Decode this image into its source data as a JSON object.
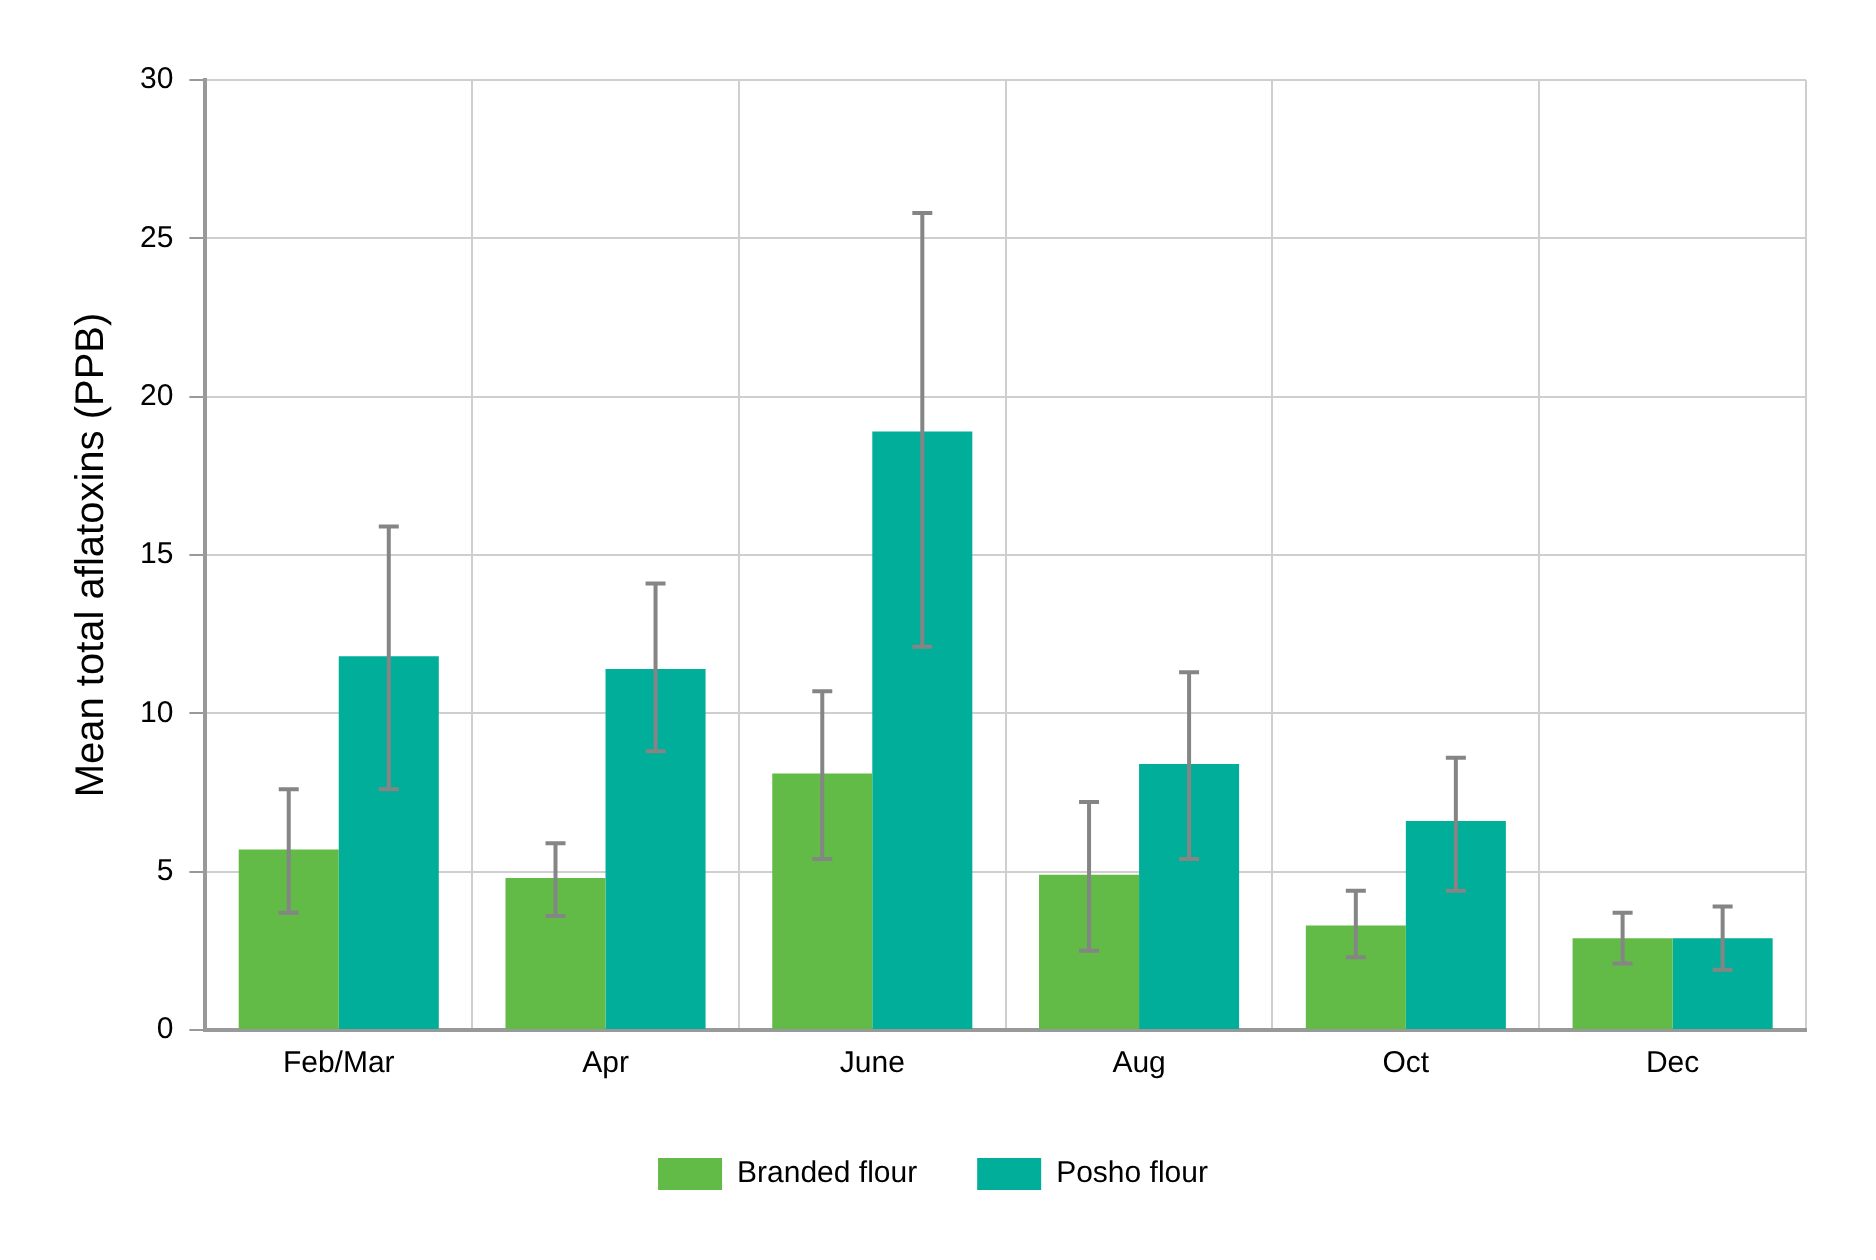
{
  "chart_data": {
    "type": "bar",
    "ylabel": "Mean total aflatoxins (PPB)",
    "categories": [
      "Feb/Mar",
      "Apr",
      "June",
      "Aug",
      "Oct",
      "Dec"
    ],
    "series": [
      {
        "name": "Branded flour",
        "color": "#62bb46",
        "values": [
          5.7,
          4.8,
          8.1,
          4.9,
          3.3,
          2.9
        ],
        "errors": [
          [
            3.7,
            7.6
          ],
          [
            3.6,
            5.9
          ],
          [
            5.4,
            10.7
          ],
          [
            2.5,
            7.2
          ],
          [
            2.3,
            4.4
          ],
          [
            2.1,
            3.7
          ]
        ]
      },
      {
        "name": "Posho flour",
        "color": "#00ae9a",
        "values": [
          11.8,
          11.4,
          18.9,
          8.4,
          6.6,
          2.9
        ],
        "errors": [
          [
            7.6,
            15.9
          ],
          [
            8.8,
            14.1
          ],
          [
            12.1,
            25.8
          ],
          [
            5.4,
            11.3
          ],
          [
            4.4,
            8.6
          ],
          [
            1.9,
            3.9
          ]
        ]
      }
    ],
    "ylim": [
      0,
      30
    ],
    "yticks": [
      0,
      5,
      10,
      15,
      20,
      25,
      30
    ],
    "grid": true,
    "legend": "bottom"
  }
}
